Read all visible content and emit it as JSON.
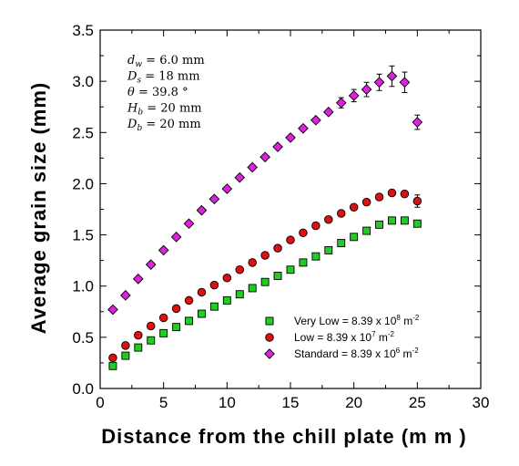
{
  "chart_data": {
    "type": "scatter",
    "xlabel": "Distance from the chill plate (m m )",
    "ylabel": "Average grain size (mm)",
    "xlim": [
      0,
      30
    ],
    "ylim": [
      0.0,
      3.5
    ],
    "xticks": [
      "0",
      "5",
      "10",
      "15",
      "20",
      "25",
      "30"
    ],
    "yticks": [
      "0.0",
      "0.5",
      "1.0",
      "1.5",
      "2.0",
      "2.5",
      "3.0",
      "3.5"
    ],
    "grid": false,
    "legend_position": "bottom-right",
    "parameters": [
      {
        "sym": "d",
        "sub": "w",
        "rest": " = 6.0 mm"
      },
      {
        "sym": "D",
        "sub": "s",
        "rest": " = 18 mm"
      },
      {
        "sym": "θ",
        "sub": "",
        "rest": " = 39.8 °"
      },
      {
        "sym": "H",
        "sub": "b",
        "rest": " = 20 mm"
      },
      {
        "sym": "D",
        "sub": "b",
        "rest": " = 20 mm"
      }
    ],
    "series": [
      {
        "name": "Very Low = 8.39 x 10",
        "exp": "8",
        "unit": " m",
        "unit_exp": "-2",
        "marker": "square",
        "color": "#22cc22",
        "x": [
          1,
          2,
          3,
          4,
          5,
          6,
          7,
          8,
          9,
          10,
          11,
          12,
          13,
          14,
          15,
          16,
          17,
          18,
          19,
          20,
          21,
          22,
          23,
          24,
          25
        ],
        "y": [
          0.22,
          0.32,
          0.4,
          0.47,
          0.54,
          0.6,
          0.66,
          0.73,
          0.8,
          0.86,
          0.92,
          0.98,
          1.04,
          1.1,
          1.16,
          1.23,
          1.29,
          1.35,
          1.42,
          1.48,
          1.54,
          1.6,
          1.64,
          1.64,
          1.61
        ]
      },
      {
        "name": "Low = 8.39 x 10",
        "exp": "7",
        "unit": " m",
        "unit_exp": "-2",
        "marker": "circle",
        "color": "#dd1111",
        "x": [
          1,
          2,
          3,
          4,
          5,
          6,
          7,
          8,
          9,
          10,
          11,
          12,
          13,
          14,
          15,
          16,
          17,
          18,
          19,
          20,
          21,
          22,
          23,
          24,
          25
        ],
        "y": [
          0.3,
          0.42,
          0.52,
          0.61,
          0.69,
          0.78,
          0.86,
          0.94,
          1.01,
          1.08,
          1.16,
          1.23,
          1.3,
          1.37,
          1.45,
          1.52,
          1.59,
          1.65,
          1.71,
          1.77,
          1.82,
          1.87,
          1.91,
          1.9,
          1.83
        ]
      },
      {
        "name": "Standard = 8.39 x 10",
        "exp": "6",
        "unit": " m",
        "unit_exp": "-2",
        "marker": "diamond",
        "color": "#dd22dd",
        "x": [
          1,
          2,
          3,
          4,
          5,
          6,
          7,
          8,
          9,
          10,
          11,
          12,
          13,
          14,
          15,
          16,
          17,
          18,
          19,
          20,
          21,
          22,
          23,
          24,
          25
        ],
        "y": [
          0.77,
          0.91,
          1.07,
          1.21,
          1.35,
          1.48,
          1.61,
          1.74,
          1.85,
          1.95,
          2.06,
          2.16,
          2.26,
          2.36,
          2.45,
          2.54,
          2.62,
          2.7,
          2.79,
          2.86,
          2.92,
          2.99,
          3.05,
          2.99,
          2.6
        ]
      }
    ],
    "error_bars": {
      "series_index": 2,
      "x": [
        19,
        20,
        21,
        22,
        23,
        24,
        25
      ],
      "err": [
        0.05,
        0.06,
        0.07,
        0.08,
        0.1,
        0.1,
        0.07
      ]
    },
    "error_bars_low": {
      "series_index": 1,
      "x": [
        25
      ],
      "err": [
        0.06
      ]
    }
  }
}
